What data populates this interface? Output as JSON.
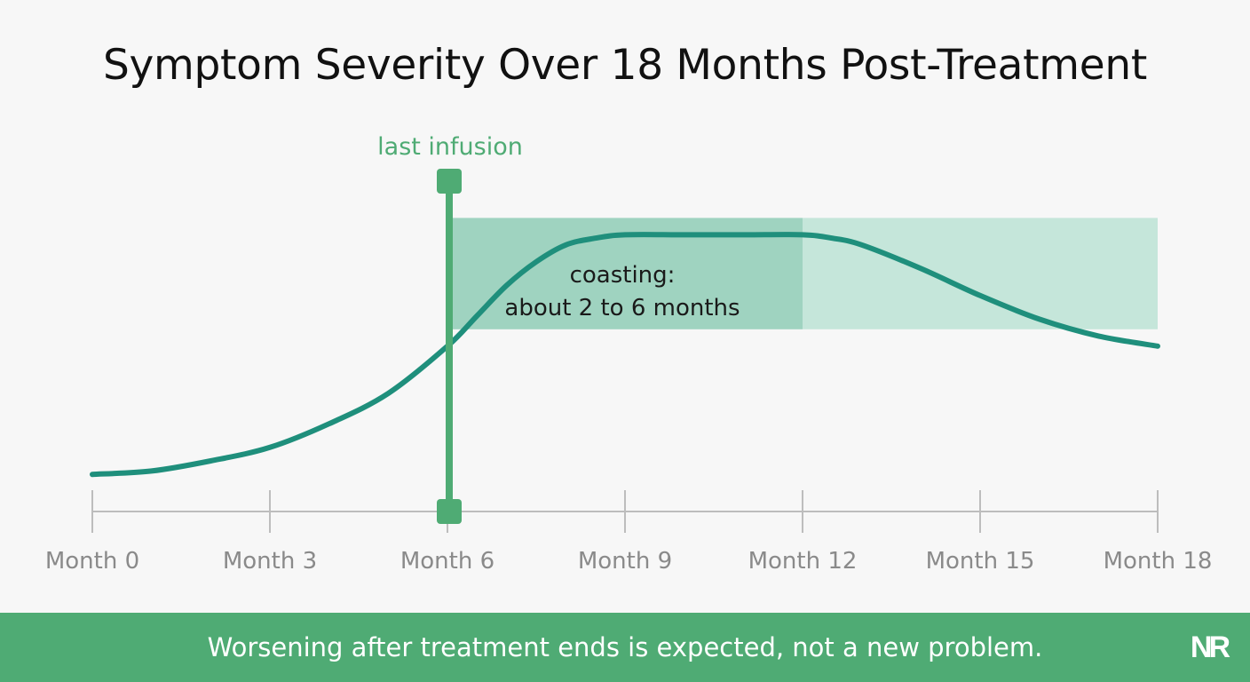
{
  "title": "Symptom Severity Over 18 Months Post-Treatment",
  "footer": {
    "message": "Worsening after treatment ends is expected, not a new problem.",
    "logo": "NR"
  },
  "colors": {
    "curve": "#1f8f7c",
    "marker": "#4fab74",
    "band_dark": "#9fd3c0",
    "band_light": "#c5e6da",
    "axis": "#bdbdbd",
    "tick_label": "#8a8a8a",
    "footer_bg": "#4fab74"
  },
  "chart_data": {
    "type": "line",
    "title": "Symptom Severity Over 18 Months Post-Treatment",
    "xlabel": "",
    "ylabel": "",
    "x_ticks": [
      0,
      3,
      6,
      9,
      12,
      15,
      18
    ],
    "x_tick_labels": [
      "Month 0",
      "Month 3",
      "Month 6",
      "Month 9",
      "Month 12",
      "Month 15",
      "Month 18"
    ],
    "xlim": [
      0,
      18
    ],
    "ylim": [
      0,
      1
    ],
    "grid": false,
    "series": [
      {
        "x": [
          0,
          1,
          2,
          3,
          4,
          5,
          6,
          6.5,
          7,
          7.5,
          8,
          8.5,
          9,
          10,
          11,
          12,
          12.5,
          13,
          14,
          15,
          16,
          17,
          18
        ],
        "y": [
          0.11,
          0.12,
          0.15,
          0.19,
          0.26,
          0.35,
          0.49,
          0.58,
          0.67,
          0.74,
          0.79,
          0.81,
          0.82,
          0.82,
          0.82,
          0.82,
          0.81,
          0.79,
          0.72,
          0.64,
          0.57,
          0.52,
          0.49
        ]
      }
    ],
    "annotations": [
      {
        "type": "vline",
        "x": 6,
        "label": "last infusion"
      },
      {
        "type": "band",
        "x_start": 6,
        "x_end": 12,
        "y_start": 0.54,
        "y_end": 0.87,
        "label_lines": [
          "coasting:",
          "about 2 to 6 months"
        ]
      },
      {
        "type": "band",
        "x_start": 12,
        "x_end": 18,
        "y_start": 0.54,
        "y_end": 0.87
      }
    ]
  }
}
